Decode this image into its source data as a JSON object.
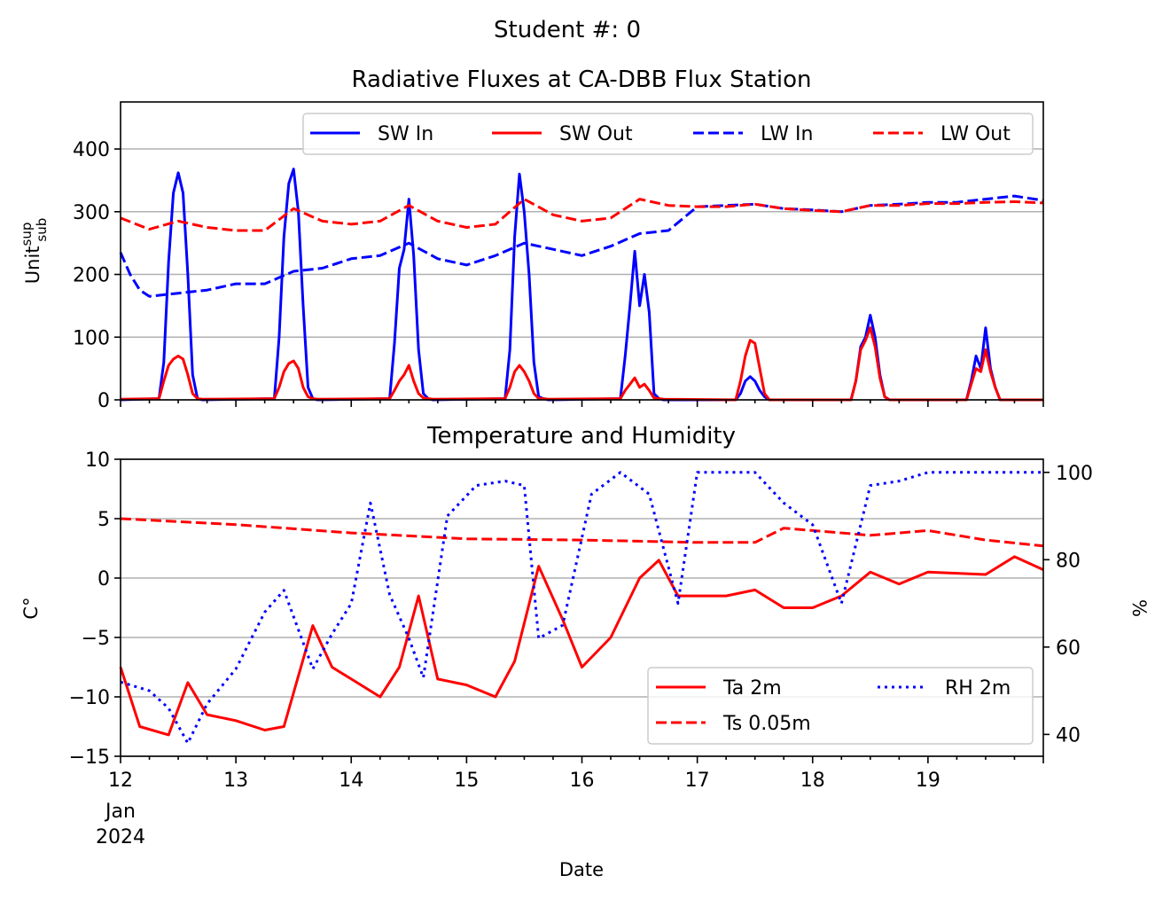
{
  "suptitle": "Student #: 0",
  "chart_data": [
    {
      "type": "line",
      "title": "Radiative Fluxes at CA-DBB Flux Station",
      "ylabel": "Unit",
      "ylabel_sup": "sup",
      "ylabel_sub": "sub",
      "xlim": [
        "2024-01-12 00:00",
        "2024-01-20 00:00"
      ],
      "ylim": [
        0,
        475
      ],
      "yticks": [
        0,
        100,
        200,
        300,
        400
      ],
      "grid": "y",
      "legend": "top-right",
      "legend_columns": 4,
      "series": [
        {
          "name": "SW In",
          "color": "#0000ff",
          "style": "solid",
          "x": [
            "2024-01-12 00:00",
            "2024-01-12 08:00",
            "2024-01-12 09:00",
            "2024-01-12 10:00",
            "2024-01-12 11:00",
            "2024-01-12 12:00",
            "2024-01-12 13:00",
            "2024-01-12 14:00",
            "2024-01-12 15:00",
            "2024-01-12 16:00",
            "2024-01-12 17:00",
            "2024-01-13 08:00",
            "2024-01-13 09:00",
            "2024-01-13 10:00",
            "2024-01-13 11:00",
            "2024-01-13 12:00",
            "2024-01-13 13:00",
            "2024-01-13 14:00",
            "2024-01-13 15:00",
            "2024-01-13 16:00",
            "2024-01-13 17:00",
            "2024-01-14 08:00",
            "2024-01-14 09:00",
            "2024-01-14 10:00",
            "2024-01-14 11:00",
            "2024-01-14 12:00",
            "2024-01-14 13:00",
            "2024-01-14 14:00",
            "2024-01-14 15:00",
            "2024-01-14 16:00",
            "2024-01-14 17:00",
            "2024-01-15 08:00",
            "2024-01-15 09:00",
            "2024-01-15 10:00",
            "2024-01-15 11:00",
            "2024-01-15 12:00",
            "2024-01-15 13:00",
            "2024-01-15 14:00",
            "2024-01-15 15:00",
            "2024-01-15 16:00",
            "2024-01-15 17:00",
            "2024-01-16 08:00",
            "2024-01-16 09:00",
            "2024-01-16 10:00",
            "2024-01-16 11:00",
            "2024-01-16 12:00",
            "2024-01-16 13:00",
            "2024-01-16 14:00",
            "2024-01-16 15:00",
            "2024-01-16 16:00",
            "2024-01-16 17:00",
            "2024-01-17 08:00",
            "2024-01-17 09:00",
            "2024-01-17 10:00",
            "2024-01-17 11:00",
            "2024-01-17 12:00",
            "2024-01-17 13:00",
            "2024-01-17 14:00",
            "2024-01-17 15:00",
            "2024-01-17 16:00",
            "2024-01-17 17:00",
            "2024-01-18 08:00",
            "2024-01-18 09:00",
            "2024-01-18 10:00",
            "2024-01-18 11:00",
            "2024-01-18 12:00",
            "2024-01-18 13:00",
            "2024-01-18 14:00",
            "2024-01-18 15:00",
            "2024-01-18 16:00",
            "2024-01-18 17:00",
            "2024-01-19 08:00",
            "2024-01-19 09:00",
            "2024-01-19 10:00",
            "2024-01-19 11:00",
            "2024-01-19 12:00",
            "2024-01-19 13:00",
            "2024-01-19 14:00",
            "2024-01-19 15:00",
            "2024-01-19 16:00",
            "2024-01-19 17:00",
            "2024-01-20 00:00"
          ],
          "y": [
            0,
            2,
            60,
            220,
            330,
            362,
            330,
            200,
            40,
            2,
            0,
            2,
            100,
            260,
            345,
            368,
            300,
            150,
            20,
            2,
            0,
            2,
            90,
            210,
            240,
            320,
            230,
            80,
            10,
            2,
            0,
            2,
            80,
            260,
            360,
            300,
            200,
            60,
            5,
            2,
            0,
            2,
            70,
            150,
            237,
            150,
            200,
            140,
            10,
            2,
            0,
            0,
            10,
            30,
            37,
            30,
            15,
            5,
            0,
            0,
            0,
            0,
            30,
            85,
            100,
            135,
            100,
            40,
            5,
            0,
            0,
            0,
            30,
            70,
            50,
            115,
            50,
            20,
            0,
            0,
            0,
            0
          ]
        },
        {
          "name": "SW Out",
          "color": "#ff0000",
          "style": "solid",
          "x": [
            "2024-01-12 00:00",
            "2024-01-12 08:00",
            "2024-01-12 09:00",
            "2024-01-12 10:00",
            "2024-01-12 11:00",
            "2024-01-12 12:00",
            "2024-01-12 13:00",
            "2024-01-12 14:00",
            "2024-01-12 15:00",
            "2024-01-12 16:00",
            "2024-01-12 17:00",
            "2024-01-13 08:00",
            "2024-01-13 09:00",
            "2024-01-13 10:00",
            "2024-01-13 11:00",
            "2024-01-13 12:00",
            "2024-01-13 13:00",
            "2024-01-13 14:00",
            "2024-01-13 15:00",
            "2024-01-13 16:00",
            "2024-01-13 17:00",
            "2024-01-14 08:00",
            "2024-01-14 09:00",
            "2024-01-14 10:00",
            "2024-01-14 11:00",
            "2024-01-14 12:00",
            "2024-01-14 13:00",
            "2024-01-14 14:00",
            "2024-01-14 15:00",
            "2024-01-14 16:00",
            "2024-01-14 17:00",
            "2024-01-15 08:00",
            "2024-01-15 09:00",
            "2024-01-15 10:00",
            "2024-01-15 11:00",
            "2024-01-15 12:00",
            "2024-01-15 13:00",
            "2024-01-15 14:00",
            "2024-01-15 15:00",
            "2024-01-15 16:00",
            "2024-01-15 17:00",
            "2024-01-16 08:00",
            "2024-01-16 09:00",
            "2024-01-16 10:00",
            "2024-01-16 11:00",
            "2024-01-16 12:00",
            "2024-01-16 13:00",
            "2024-01-16 14:00",
            "2024-01-16 15:00",
            "2024-01-16 16:00",
            "2024-01-16 17:00",
            "2024-01-17 08:00",
            "2024-01-17 09:00",
            "2024-01-17 10:00",
            "2024-01-17 11:00",
            "2024-01-17 12:00",
            "2024-01-17 13:00",
            "2024-01-17 14:00",
            "2024-01-17 15:00",
            "2024-01-17 16:00",
            "2024-01-17 17:00",
            "2024-01-18 08:00",
            "2024-01-18 09:00",
            "2024-01-18 10:00",
            "2024-01-18 11:00",
            "2024-01-18 12:00",
            "2024-01-18 13:00",
            "2024-01-18 14:00",
            "2024-01-18 15:00",
            "2024-01-18 16:00",
            "2024-01-18 17:00",
            "2024-01-19 08:00",
            "2024-01-19 09:00",
            "2024-01-19 10:00",
            "2024-01-19 11:00",
            "2024-01-19 12:00",
            "2024-01-19 13:00",
            "2024-01-19 14:00",
            "2024-01-19 15:00",
            "2024-01-19 16:00",
            "2024-01-19 17:00",
            "2024-01-20 00:00"
          ],
          "y": [
            1,
            2,
            30,
            55,
            65,
            70,
            65,
            40,
            10,
            2,
            1,
            2,
            20,
            45,
            58,
            62,
            50,
            20,
            5,
            2,
            1,
            2,
            15,
            30,
            40,
            55,
            30,
            10,
            3,
            2,
            1,
            2,
            20,
            45,
            55,
            45,
            30,
            10,
            2,
            2,
            1,
            2,
            15,
            25,
            35,
            20,
            25,
            15,
            3,
            2,
            1,
            0,
            30,
            70,
            95,
            90,
            50,
            10,
            0,
            0,
            0,
            0,
            30,
            80,
            95,
            115,
            85,
            35,
            5,
            0,
            0,
            0,
            25,
            50,
            45,
            80,
            45,
            20,
            0,
            0,
            0,
            0
          ]
        },
        {
          "name": "LW In",
          "color": "#0000ff",
          "style": "dashed",
          "x": [
            "2024-01-12 00:00",
            "2024-01-12 02:00",
            "2024-01-12 04:00",
            "2024-01-12 06:00",
            "2024-01-12 12:00",
            "2024-01-12 18:00",
            "2024-01-13 00:00",
            "2024-01-13 06:00",
            "2024-01-13 12:00",
            "2024-01-13 18:00",
            "2024-01-14 00:00",
            "2024-01-14 06:00",
            "2024-01-14 12:00",
            "2024-01-14 18:00",
            "2024-01-15 00:00",
            "2024-01-15 06:00",
            "2024-01-15 12:00",
            "2024-01-15 18:00",
            "2024-01-16 00:00",
            "2024-01-16 06:00",
            "2024-01-16 12:00",
            "2024-01-16 18:00",
            "2024-01-17 00:00",
            "2024-01-17 06:00",
            "2024-01-17 12:00",
            "2024-01-17 18:00",
            "2024-01-18 00:00",
            "2024-01-18 06:00",
            "2024-01-18 12:00",
            "2024-01-18 18:00",
            "2024-01-19 00:00",
            "2024-01-19 06:00",
            "2024-01-19 12:00",
            "2024-01-19 18:00",
            "2024-01-20 00:00"
          ],
          "y": [
            235,
            200,
            175,
            165,
            170,
            175,
            185,
            185,
            205,
            210,
            225,
            230,
            250,
            225,
            215,
            230,
            250,
            240,
            230,
            245,
            265,
            270,
            308,
            310,
            312,
            305,
            303,
            300,
            310,
            312,
            315,
            315,
            320,
            325,
            318
          ]
        },
        {
          "name": "LW Out",
          "color": "#ff0000",
          "style": "dashed",
          "x": [
            "2024-01-12 00:00",
            "2024-01-12 06:00",
            "2024-01-12 12:00",
            "2024-01-12 18:00",
            "2024-01-13 00:00",
            "2024-01-13 06:00",
            "2024-01-13 12:00",
            "2024-01-13 18:00",
            "2024-01-14 00:00",
            "2024-01-14 06:00",
            "2024-01-14 12:00",
            "2024-01-14 18:00",
            "2024-01-15 00:00",
            "2024-01-15 06:00",
            "2024-01-15 12:00",
            "2024-01-15 18:00",
            "2024-01-16 00:00",
            "2024-01-16 06:00",
            "2024-01-16 12:00",
            "2024-01-16 18:00",
            "2024-01-17 00:00",
            "2024-01-17 06:00",
            "2024-01-17 12:00",
            "2024-01-17 18:00",
            "2024-01-18 00:00",
            "2024-01-18 06:00",
            "2024-01-18 12:00",
            "2024-01-18 18:00",
            "2024-01-19 00:00",
            "2024-01-19 06:00",
            "2024-01-19 12:00",
            "2024-01-19 18:00",
            "2024-01-20 00:00"
          ],
          "y": [
            290,
            272,
            285,
            275,
            270,
            270,
            305,
            285,
            280,
            285,
            310,
            285,
            275,
            280,
            320,
            295,
            285,
            290,
            320,
            310,
            308,
            308,
            312,
            305,
            302,
            300,
            310,
            310,
            313,
            313,
            315,
            316,
            314
          ]
        }
      ]
    },
    {
      "type": "line",
      "title": "Temperature and Humidity",
      "xlabel": "Date",
      "ylabel": "C°",
      "ylabel_right": "%",
      "xlim": [
        "2024-01-12 00:00",
        "2024-01-20 00:00"
      ],
      "xtick_labels": [
        "12",
        "13",
        "14",
        "15",
        "16",
        "17",
        "18",
        "19"
      ],
      "xtick_sublabels": [
        "Jan",
        "2024"
      ],
      "ylim": [
        -15,
        10
      ],
      "yticks": [
        -15,
        -10,
        -5,
        0,
        5,
        10
      ],
      "ylim_right": [
        35,
        103
      ],
      "yticks_right": [
        40,
        60,
        80,
        100
      ],
      "grid": "y",
      "legend": "bottom-right",
      "legend_columns": 2,
      "series": [
        {
          "name": "Ta 2m",
          "color": "#ff0000",
          "style": "solid",
          "axis": "left",
          "x": [
            "2024-01-12 00:00",
            "2024-01-12 04:00",
            "2024-01-12 10:00",
            "2024-01-12 14:00",
            "2024-01-12 18:00",
            "2024-01-13 00:00",
            "2024-01-13 06:00",
            "2024-01-13 10:00",
            "2024-01-13 16:00",
            "2024-01-13 20:00",
            "2024-01-14 00:00",
            "2024-01-14 06:00",
            "2024-01-14 10:00",
            "2024-01-14 14:00",
            "2024-01-14 18:00",
            "2024-01-15 00:00",
            "2024-01-15 06:00",
            "2024-01-15 10:00",
            "2024-01-15 15:00",
            "2024-01-15 20:00",
            "2024-01-16 00:00",
            "2024-01-16 06:00",
            "2024-01-16 12:00",
            "2024-01-16 16:00",
            "2024-01-16 20:00",
            "2024-01-17 06:00",
            "2024-01-17 12:00",
            "2024-01-17 18:00",
            "2024-01-18 00:00",
            "2024-01-18 06:00",
            "2024-01-18 12:00",
            "2024-01-18 18:00",
            "2024-01-19 00:00",
            "2024-01-19 12:00",
            "2024-01-19 18:00",
            "2024-01-20 00:00"
          ],
          "y": [
            -7.5,
            -12.5,
            -13.2,
            -8.8,
            -11.5,
            -12,
            -12.8,
            -12.5,
            -4,
            -7.5,
            -8.5,
            -10,
            -7.5,
            -1.5,
            -8.5,
            -9,
            -10,
            -7,
            1,
            -3.5,
            -7.5,
            -5,
            0,
            1.5,
            -1.5,
            -1.5,
            -1,
            -2.5,
            -2.5,
            -1.5,
            0.5,
            -0.5,
            0.5,
            0.3,
            1.8,
            0.7
          ]
        },
        {
          "name": "Ts 0.05m",
          "color": "#ff0000",
          "style": "dashed",
          "axis": "left",
          "x": [
            "2024-01-12 00:00",
            "2024-01-13 00:00",
            "2024-01-14 00:00",
            "2024-01-15 00:00",
            "2024-01-16 00:00",
            "2024-01-17 00:00",
            "2024-01-17 12:00",
            "2024-01-17 18:00",
            "2024-01-18 00:00",
            "2024-01-18 12:00",
            "2024-01-19 00:00",
            "2024-01-19 12:00",
            "2024-01-20 00:00"
          ],
          "y": [
            5,
            4.5,
            3.8,
            3.3,
            3.2,
            3,
            3,
            4.2,
            4,
            3.6,
            4,
            3.2,
            2.7
          ]
        },
        {
          "name": "RH 2m",
          "color": "#0000ff",
          "style": "dotted",
          "axis": "right",
          "x": [
            "2024-01-12 00:00",
            "2024-01-12 06:00",
            "2024-01-12 10:00",
            "2024-01-12 14:00",
            "2024-01-12 18:00",
            "2024-01-13 00:00",
            "2024-01-13 06:00",
            "2024-01-13 10:00",
            "2024-01-13 16:00",
            "2024-01-13 20:00",
            "2024-01-14 00:00",
            "2024-01-14 04:00",
            "2024-01-14 08:00",
            "2024-01-14 12:00",
            "2024-01-14 15:00",
            "2024-01-14 20:00",
            "2024-01-15 02:00",
            "2024-01-15 08:00",
            "2024-01-15 12:00",
            "2024-01-15 15:00",
            "2024-01-15 20:00",
            "2024-01-16 02:00",
            "2024-01-16 08:00",
            "2024-01-16 14:00",
            "2024-01-16 20:00",
            "2024-01-17 00:00",
            "2024-01-17 12:00",
            "2024-01-17 18:00",
            "2024-01-18 00:00",
            "2024-01-18 06:00",
            "2024-01-18 12:00",
            "2024-01-18 18:00",
            "2024-01-19 00:00",
            "2024-01-19 06:00",
            "2024-01-19 12:00",
            "2024-01-20 00:00"
          ],
          "y": [
            52,
            50,
            46,
            38,
            47,
            55,
            68,
            73,
            55,
            63,
            70,
            93,
            72,
            62,
            53,
            90,
            97,
            98,
            97,
            62,
            65,
            95,
            100,
            95,
            70,
            100,
            100,
            93,
            88,
            70,
            97,
            98,
            100,
            100,
            100,
            100
          ]
        }
      ]
    }
  ]
}
